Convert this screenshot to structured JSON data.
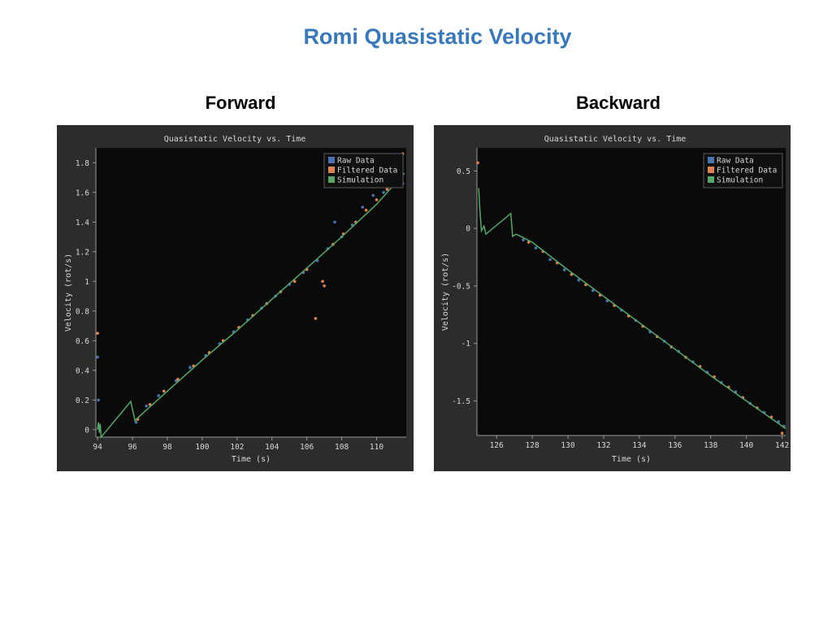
{
  "page": {
    "title": "Romi Quasistatic Velocity",
    "subtitles": [
      "Forward",
      "Backward"
    ]
  },
  "chart_data": [
    {
      "type": "scatter",
      "title": "Quasistatic Velocity vs. Time",
      "xlabel": "Time (s)",
      "ylabel": "Velocity (rot/s)",
      "xlim": [
        93.9,
        111.7
      ],
      "ylim": [
        -0.05,
        1.9
      ],
      "x_ticks": [
        94,
        96,
        98,
        100,
        102,
        104,
        106,
        108,
        110
      ],
      "y_ticks": [
        0,
        0.2,
        0.4,
        0.6,
        0.8,
        1,
        1.2,
        1.4,
        1.6,
        1.8
      ],
      "grid": false,
      "legend": "top-right",
      "series": [
        {
          "name": "Raw Data",
          "color": "#4c72b0",
          "kind": "scatter",
          "points": [
            [
              94.0,
              0.49
            ],
            [
              94.05,
              0.2
            ],
            [
              96.2,
              0.05
            ],
            [
              96.8,
              0.16
            ],
            [
              97.5,
              0.23
            ],
            [
              98.5,
              0.33
            ],
            [
              99.3,
              0.42
            ],
            [
              100.2,
              0.5
            ],
            [
              101.0,
              0.58
            ],
            [
              101.8,
              0.66
            ],
            [
              102.6,
              0.74
            ],
            [
              103.4,
              0.82
            ],
            [
              104.2,
              0.9
            ],
            [
              105.0,
              0.98
            ],
            [
              105.8,
              1.06
            ],
            [
              106.6,
              1.14
            ],
            [
              107.2,
              1.22
            ],
            [
              107.6,
              1.4
            ],
            [
              108.0,
              1.3
            ],
            [
              108.6,
              1.38
            ],
            [
              109.2,
              1.5
            ],
            [
              109.8,
              1.58
            ],
            [
              110.4,
              1.6
            ],
            [
              111.0,
              1.7
            ],
            [
              111.3,
              1.72
            ],
            [
              111.5,
              1.66
            ]
          ]
        },
        {
          "name": "Filtered Data",
          "color": "#dd8452",
          "kind": "scatter",
          "points": [
            [
              94.0,
              0.65
            ],
            [
              96.3,
              0.07
            ],
            [
              97.0,
              0.17
            ],
            [
              97.8,
              0.26
            ],
            [
              98.6,
              0.34
            ],
            [
              99.5,
              0.43
            ],
            [
              100.4,
              0.52
            ],
            [
              101.2,
              0.6
            ],
            [
              102.1,
              0.69
            ],
            [
              102.9,
              0.77
            ],
            [
              103.7,
              0.85
            ],
            [
              104.5,
              0.93
            ],
            [
              105.3,
              1.0
            ],
            [
              106.0,
              1.08
            ],
            [
              106.5,
              0.75
            ],
            [
              106.9,
              1.0
            ],
            [
              107.0,
              0.97
            ],
            [
              107.5,
              1.25
            ],
            [
              108.1,
              1.32
            ],
            [
              108.8,
              1.4
            ],
            [
              109.4,
              1.48
            ],
            [
              110.0,
              1.55
            ],
            [
              110.6,
              1.62
            ],
            [
              111.2,
              1.78
            ],
            [
              111.5,
              1.86
            ]
          ]
        },
        {
          "name": "Simulation",
          "color": "#55a868",
          "kind": "line",
          "points": [
            [
              94.0,
              0.0
            ],
            [
              94.05,
              0.05
            ],
            [
              94.1,
              -0.02
            ],
            [
              94.15,
              0.04
            ],
            [
              94.2,
              -0.05
            ],
            [
              95.9,
              0.19
            ],
            [
              96.15,
              0.06
            ],
            [
              96.3,
              0.08
            ],
            [
              98.0,
              0.26
            ],
            [
              100.0,
              0.47
            ],
            [
              102.0,
              0.67
            ],
            [
              104.0,
              0.88
            ],
            [
              106.0,
              1.09
            ],
            [
              108.0,
              1.3
            ],
            [
              110.0,
              1.52
            ],
            [
              111.6,
              1.73
            ]
          ]
        }
      ]
    },
    {
      "type": "scatter",
      "title": "Quasistatic Velocity vs. Time",
      "xlabel": "Time (s)",
      "ylabel": "Velocity (rot/s)",
      "xlim": [
        124.9,
        142.2
      ],
      "ylim": [
        -1.8,
        0.7
      ],
      "x_ticks": [
        126,
        128,
        130,
        132,
        134,
        136,
        138,
        140,
        142
      ],
      "y_ticks": [
        0.5,
        0,
        -0.5,
        -1,
        -1.5
      ],
      "y_tick_labels": [
        "0.5",
        "0",
        "-0.5",
        "-1",
        "-1.5"
      ],
      "grid": false,
      "legend": "top-right",
      "series": [
        {
          "name": "Raw Data",
          "color": "#4c72b0",
          "kind": "scatter",
          "points": [
            [
              127.5,
              -0.1
            ],
            [
              128.2,
              -0.17
            ],
            [
              129.0,
              -0.27
            ],
            [
              129.8,
              -0.36
            ],
            [
              130.6,
              -0.45
            ],
            [
              131.4,
              -0.54
            ],
            [
              132.2,
              -0.63
            ],
            [
              133.0,
              -0.71
            ],
            [
              133.8,
              -0.8
            ],
            [
              134.6,
              -0.9
            ],
            [
              135.4,
              -0.98
            ],
            [
              136.2,
              -1.07
            ],
            [
              137.0,
              -1.16
            ],
            [
              137.8,
              -1.25
            ],
            [
              138.6,
              -1.34
            ],
            [
              139.4,
              -1.42
            ],
            [
              140.2,
              -1.52
            ],
            [
              141.0,
              -1.6
            ],
            [
              141.8,
              -1.68
            ],
            [
              142.1,
              -1.72
            ]
          ]
        },
        {
          "name": "Filtered Data",
          "color": "#dd8452",
          "kind": "scatter",
          "points": [
            [
              124.95,
              0.57
            ],
            [
              127.8,
              -0.12
            ],
            [
              128.6,
              -0.2
            ],
            [
              129.4,
              -0.3
            ],
            [
              130.2,
              -0.4
            ],
            [
              131.0,
              -0.49
            ],
            [
              131.8,
              -0.58
            ],
            [
              132.6,
              -0.67
            ],
            [
              133.4,
              -0.76
            ],
            [
              134.2,
              -0.85
            ],
            [
              135.0,
              -0.94
            ],
            [
              135.8,
              -1.03
            ],
            [
              136.6,
              -1.12
            ],
            [
              137.4,
              -1.2
            ],
            [
              138.2,
              -1.29
            ],
            [
              139.0,
              -1.38
            ],
            [
              139.8,
              -1.47
            ],
            [
              140.6,
              -1.56
            ],
            [
              141.4,
              -1.64
            ],
            [
              142.0,
              -1.78
            ]
          ]
        },
        {
          "name": "Simulation",
          "color": "#55a868",
          "kind": "line",
          "points": [
            [
              125.0,
              0.35
            ],
            [
              125.05,
              0.2
            ],
            [
              125.15,
              -0.02
            ],
            [
              125.3,
              0.02
            ],
            [
              125.4,
              -0.05
            ],
            [
              126.8,
              0.13
            ],
            [
              126.9,
              -0.07
            ],
            [
              127.1,
              -0.05
            ],
            [
              128.0,
              -0.12
            ],
            [
              130.0,
              -0.36
            ],
            [
              132.0,
              -0.59
            ],
            [
              134.0,
              -0.82
            ],
            [
              136.0,
              -1.05
            ],
            [
              138.0,
              -1.28
            ],
            [
              140.0,
              -1.5
            ],
            [
              142.2,
              -1.74
            ]
          ]
        }
      ]
    }
  ]
}
